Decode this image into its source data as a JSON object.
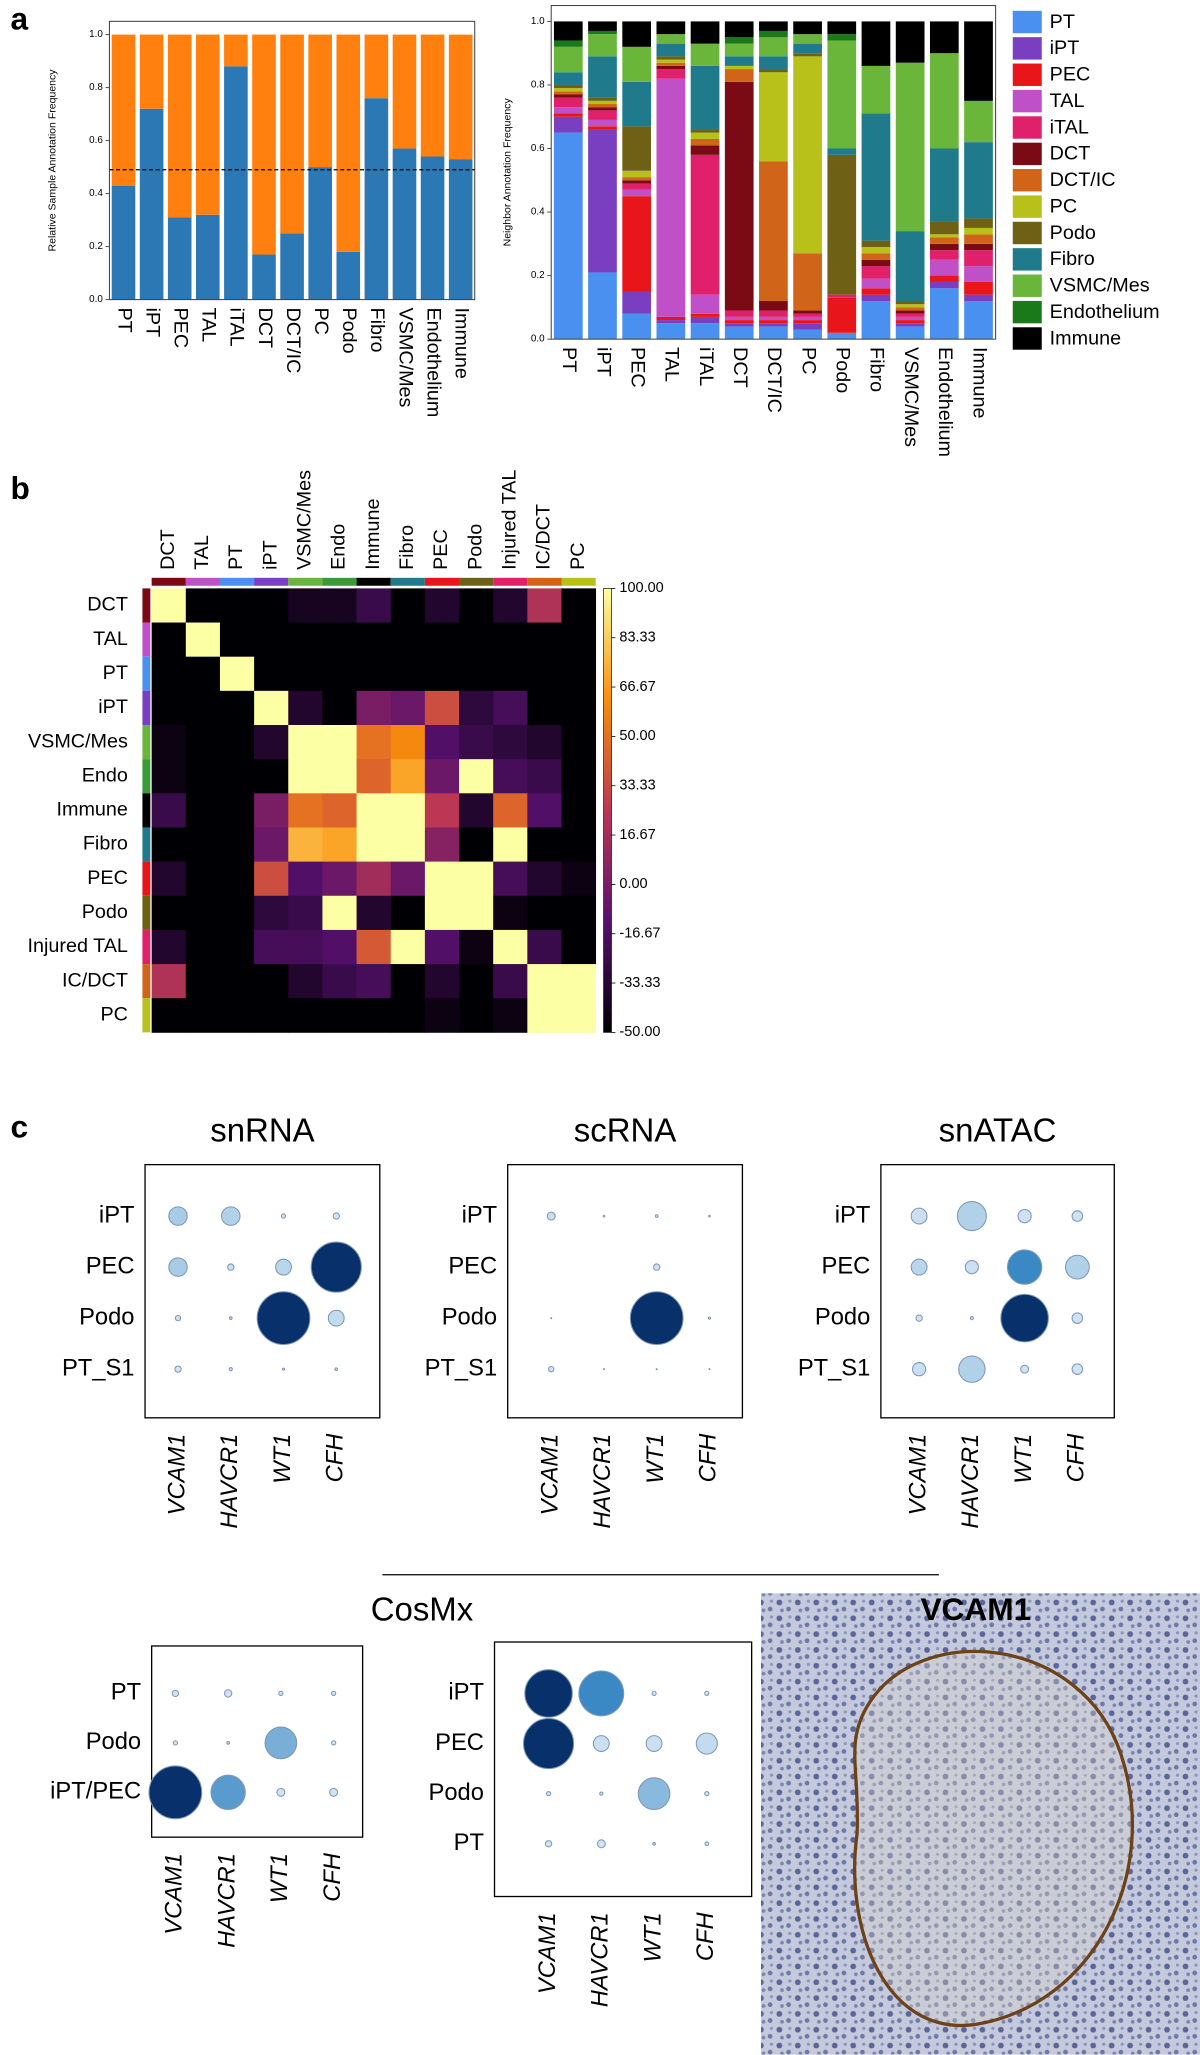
{
  "panel_labels": [
    "a",
    "b",
    "c"
  ],
  "cosmx_title": "CosMx",
  "image_title": "VCAM1",
  "chart_data": [
    {
      "type": "stacked_bar",
      "ylabel": "Relative Sample Annotation Frequency",
      "categories": [
        "PT",
        "iPT",
        "PEC",
        "TAL",
        "iTAL",
        "DCT",
        "DCT/IC",
        "PC",
        "Podo",
        "Fibro",
        "VSMC/Mes",
        "Endothelium",
        "Immune"
      ],
      "series": [
        {
          "color": "#2b78b5",
          "values": [
            0.43,
            0.72,
            0.31,
            0.32,
            0.88,
            0.17,
            0.25,
            0.5,
            0.18,
            0.76,
            0.57,
            0.54,
            0.53
          ]
        },
        {
          "color": "#ff800e",
          "values": [
            0.57,
            0.28,
            0.69,
            0.68,
            0.12,
            0.83,
            0.75,
            0.5,
            0.82,
            0.24,
            0.43,
            0.46,
            0.47
          ]
        }
      ],
      "hline": 0.49,
      "ylim": [
        0,
        1.05
      ],
      "yticks": [
        {
          "value": 0,
          "label": "0.0"
        },
        0.2,
        0.4,
        0.6,
        0.8,
        {
          "value": 1,
          "label": "1.0"
        }
      ]
    },
    {
      "type": "stacked_bar",
      "ylabel": "Neighbor Annotation Frequency",
      "categories": [
        "PT",
        "iPT",
        "PEC",
        "TAL",
        "iTAL",
        "DCT",
        "DCT/IC",
        "PC",
        "Podo",
        "Fibro",
        "VSMC/Mes",
        "Endothelium",
        "Immune"
      ],
      "series": [
        {
          "name": "PT",
          "color": "#4a90f0",
          "values": [
            0.65,
            0.21,
            0.08,
            0.05,
            0.05,
            0.04,
            0.04,
            0.03,
            0.02,
            0.12,
            0.04,
            0.16,
            0.12
          ]
        },
        {
          "name": "iPT",
          "color": "#7a3fc0",
          "values": [
            0.05,
            0.45,
            0.07,
            0.01,
            0.02,
            0.01,
            0.01,
            0.02,
            0,
            0.02,
            0.01,
            0.02,
            0.02
          ]
        },
        {
          "name": "PEC",
          "color": "#e8151a",
          "values": [
            0.01,
            0.01,
            0.3,
            0.01,
            0.01,
            0.01,
            0.01,
            0.01,
            0.11,
            0.02,
            0.01,
            0.02,
            0.04
          ]
        },
        {
          "name": "TAL",
          "color": "#c050c8",
          "values": [
            0.02,
            0.02,
            0.02,
            0.75,
            0.06,
            0.01,
            0.01,
            0.01,
            0,
            0.03,
            0.01,
            0.05,
            0.05
          ]
        },
        {
          "name": "iTAL",
          "color": "#e0206a",
          "values": [
            0.03,
            0.03,
            0.02,
            0.03,
            0.44,
            0.02,
            0.02,
            0.01,
            0.01,
            0.04,
            0.01,
            0.03,
            0.05
          ]
        },
        {
          "name": "DCT",
          "color": "#7a0a14",
          "values": [
            0.01,
            0.01,
            0.01,
            0.01,
            0.03,
            0.72,
            0.03,
            0.01,
            0,
            0.02,
            0.01,
            0.02,
            0.02
          ]
        },
        {
          "name": "DCT/IC",
          "color": "#d06418",
          "values": [
            0.01,
            0.01,
            0.01,
            0.01,
            0.02,
            0.04,
            0.44,
            0.18,
            0,
            0.02,
            0.01,
            0.02,
            0.03
          ]
        },
        {
          "name": "PC",
          "color": "#b8c01a",
          "values": [
            0.01,
            0.01,
            0.02,
            0.01,
            0.02,
            0.01,
            0.28,
            0.62,
            0,
            0.02,
            0.01,
            0.01,
            0.02
          ]
        },
        {
          "name": "Podo",
          "color": "#6e6014",
          "values": [
            0.01,
            0.01,
            0.14,
            0.01,
            0.01,
            0,
            0.01,
            0.01,
            0.44,
            0.02,
            0.01,
            0.04,
            0.03
          ]
        },
        {
          "name": "Fibro",
          "color": "#1f7a8c",
          "values": [
            0.04,
            0.13,
            0.14,
            0.04,
            0.2,
            0.03,
            0.04,
            0.03,
            0.02,
            0.4,
            0.22,
            0.23,
            0.24
          ]
        },
        {
          "name": "VSMC/Mes",
          "color": "#6ab63a",
          "values": [
            0.08,
            0.07,
            0.11,
            0.03,
            0.07,
            0.04,
            0.06,
            0.03,
            0.34,
            0.15,
            0.53,
            0.3,
            0.13
          ]
        },
        {
          "name": "Endothelium",
          "color": "#1a7a1a",
          "values": [
            0.02,
            0.01,
            0,
            0,
            0,
            0.02,
            0.02,
            0,
            0.02,
            0,
            0,
            0,
            0
          ]
        },
        {
          "name": "Immune",
          "color": "#000000",
          "values": [
            0.06,
            0.03,
            0.08,
            0.04,
            0.07,
            0.05,
            0.03,
            0.04,
            0.04,
            0.14,
            0.13,
            0.1,
            0.25
          ]
        }
      ],
      "legend": "outside-right",
      "ylim": [
        0,
        1.05
      ],
      "yticks": [
        {
          "value": 0,
          "label": "0.0"
        },
        0.2,
        0.4,
        0.6,
        0.8,
        {
          "value": 1,
          "label": "1.0"
        }
      ]
    },
    {
      "type": "heatmap",
      "colormap": "inferno",
      "rows": [
        "DCT",
        "TAL",
        "PT",
        "iPT",
        "VSMC/Mes",
        "Endo",
        "Immune",
        "Fibro",
        "PEC",
        "Podo",
        "Injured TAL",
        "IC/DCT",
        "PC"
      ],
      "columns": [
        "DCT",
        "TAL",
        "PT",
        "iPT",
        "VSMC/Mes",
        "Endo",
        "Immune",
        "Fibro",
        "PEC",
        "Podo",
        "Injured TAL",
        "IC/DCT",
        "PC"
      ],
      "label_colors": [
        "#7a0a14",
        "#c050c8",
        "#4a90f0",
        "#7a3fc0",
        "#6ab63a",
        "#3a9a3a",
        "#000000",
        "#1f7a8c",
        "#e8151a",
        "#6e6014",
        "#e0206a",
        "#d06418",
        "#b8c01a"
      ],
      "values": [
        [
          100,
          -50,
          -50,
          -50,
          -40,
          -40,
          -25,
          -50,
          -35,
          -50,
          -35,
          20,
          -50
        ],
        [
          -50,
          100,
          -50,
          -50,
          -50,
          -50,
          -50,
          -50,
          -50,
          -50,
          -50,
          -50,
          -50
        ],
        [
          -50,
          -50,
          100,
          -50,
          -50,
          -50,
          -50,
          -50,
          -50,
          -50,
          -50,
          -50,
          -50
        ],
        [
          -50,
          -50,
          -50,
          100,
          -35,
          -50,
          0,
          -5,
          35,
          -30,
          -20,
          -50,
          -50
        ],
        [
          -45,
          -50,
          -50,
          -35,
          100,
          100,
          50,
          60,
          -15,
          -25,
          -30,
          -35,
          -50
        ],
        [
          -45,
          -50,
          -50,
          -50,
          100,
          100,
          45,
          70,
          -5,
          100,
          -20,
          -25,
          -50
        ],
        [
          -25,
          -50,
          -50,
          0,
          50,
          45,
          100,
          100,
          25,
          -35,
          45,
          -15,
          -50
        ],
        [
          -50,
          -50,
          -50,
          -5,
          75,
          70,
          100,
          100,
          5,
          -50,
          100,
          -50,
          -50
        ],
        [
          -35,
          -50,
          -50,
          35,
          -15,
          -5,
          15,
          -5,
          100,
          100,
          -20,
          -35,
          -45
        ],
        [
          -50,
          -50,
          -50,
          -30,
          -25,
          100,
          -35,
          -50,
          100,
          100,
          -45,
          -50,
          -50
        ],
        [
          -35,
          -50,
          -50,
          -20,
          -20,
          -15,
          40,
          100,
          -15,
          -45,
          100,
          -25,
          -50
        ],
        [
          20,
          -50,
          -50,
          -50,
          -35,
          -25,
          -20,
          -50,
          -35,
          -50,
          -25,
          100,
          100
        ],
        [
          -50,
          -50,
          -50,
          -50,
          -50,
          -50,
          -50,
          -50,
          -45,
          -50,
          -45,
          100,
          100
        ]
      ],
      "zlim": [
        -50,
        100
      ],
      "zticks": [
        {
          "value": 100,
          "label": "100.00"
        },
        {
          "value": 83.33,
          "label": "83.33"
        },
        {
          "value": 66.67,
          "label": "66.67"
        },
        {
          "value": 50,
          "label": "50.00"
        },
        {
          "value": 33.33,
          "label": "33.33"
        },
        {
          "value": 16.67,
          "label": "16.67"
        },
        {
          "value": 0,
          "label": "0.00"
        },
        {
          "value": -16.67,
          "label": "-16.67"
        },
        {
          "value": -33.33,
          "label": "-33.33"
        },
        {
          "value": -50,
          "label": "-50.00"
        }
      ]
    },
    {
      "type": "dot",
      "title": "snRNA",
      "colormap": "Blues",
      "rows": [
        "iPT",
        "PEC",
        "Podo",
        "PT_S1"
      ],
      "columns": [
        "VCAM1",
        "HAVCR1",
        "WT1",
        "CFH"
      ],
      "sizes": [
        [
          0.35,
          0.35,
          0.08,
          0.12
        ],
        [
          0.35,
          0.12,
          0.3,
          0.95
        ],
        [
          0.1,
          0.05,
          1.0,
          0.3
        ],
        [
          0.12,
          0.06,
          0.04,
          0.05
        ]
      ],
      "values": [
        [
          0.35,
          0.3,
          0.1,
          0.1
        ],
        [
          0.35,
          0.15,
          0.25,
          1.0
        ],
        [
          0.1,
          0.1,
          1.0,
          0.2
        ],
        [
          0.1,
          0.1,
          0.1,
          0.1
        ]
      ]
    },
    {
      "type": "dot",
      "title": "scRNA",
      "colormap": "Blues",
      "rows": [
        "iPT",
        "PEC",
        "Podo",
        "PT_S1"
      ],
      "columns": [
        "VCAM1",
        "HAVCR1",
        "WT1",
        "CFH"
      ],
      "sizes": [
        [
          0.15,
          0.03,
          0.05,
          0.03
        ],
        [
          0,
          0,
          0.12,
          0
        ],
        [
          0.02,
          0,
          1.0,
          0.04
        ],
        [
          0.1,
          0.02,
          0.02,
          0.02
        ]
      ],
      "values": [
        [
          0.15,
          0.1,
          0.1,
          0.1
        ],
        [
          0.1,
          0.1,
          0.1,
          0.1
        ],
        [
          0.1,
          0.1,
          1.0,
          0.1
        ],
        [
          0.1,
          0.1,
          0.1,
          0.1
        ]
      ]
    },
    {
      "type": "dot",
      "title": "snATAC",
      "colormap": "Blues",
      "rows": [
        "iPT",
        "PEC",
        "Podo",
        "PT_S1"
      ],
      "columns": [
        "VCAM1",
        "HAVCR1",
        "WT1",
        "CFH"
      ],
      "sizes": [
        [
          0.3,
          0.55,
          0.25,
          0.2
        ],
        [
          0.3,
          0.25,
          0.65,
          0.45
        ],
        [
          0.12,
          0.06,
          0.9,
          0.2
        ],
        [
          0.25,
          0.5,
          0.15,
          0.2
        ]
      ],
      "values": [
        [
          0.15,
          0.3,
          0.12,
          0.12
        ],
        [
          0.25,
          0.15,
          0.7,
          0.3
        ],
        [
          0.1,
          0.1,
          1.0,
          0.12
        ],
        [
          0.15,
          0.3,
          0.1,
          0.1
        ]
      ]
    },
    {
      "type": "dot",
      "colormap": "Blues",
      "rows": [
        "PT",
        "Podo",
        "iPT/PEC"
      ],
      "columns": [
        "VCAM1",
        "HAVCR1",
        "WT1",
        "CFH"
      ],
      "sizes": [
        [
          0.12,
          0.14,
          0.08,
          0.08
        ],
        [
          0.08,
          0.05,
          0.6,
          0.08
        ],
        [
          1.0,
          0.65,
          0.15,
          0.15
        ]
      ],
      "values": [
        [
          0.1,
          0.1,
          0.1,
          0.1
        ],
        [
          0.1,
          0.1,
          0.5,
          0.1
        ],
        [
          1.0,
          0.6,
          0.1,
          0.1
        ]
      ]
    },
    {
      "type": "dot",
      "colormap": "Blues",
      "rows": [
        "iPT",
        "PEC",
        "Podo",
        "PT"
      ],
      "columns": [
        "VCAM1",
        "HAVCR1",
        "WT1",
        "CFH"
      ],
      "sizes": [
        [
          0.9,
          0.85,
          0.08,
          0.08
        ],
        [
          0.95,
          0.3,
          0.3,
          0.4
        ],
        [
          0.08,
          0.06,
          0.6,
          0.08
        ],
        [
          0.12,
          0.15,
          0.05,
          0.07
        ]
      ],
      "values": [
        [
          1.0,
          0.7,
          0.1,
          0.1
        ],
        [
          1.0,
          0.15,
          0.15,
          0.2
        ],
        [
          0.1,
          0.1,
          0.45,
          0.1
        ],
        [
          0.1,
          0.1,
          0.1,
          0.1
        ]
      ]
    }
  ]
}
